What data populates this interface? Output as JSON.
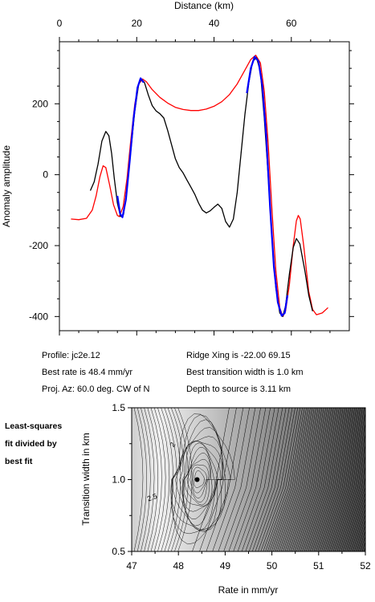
{
  "chart_data": [
    {
      "type": "line",
      "xlabel": "Distance (km)",
      "ylabel": "Anomaly amplitude",
      "xlim": [
        0,
        75
      ],
      "ylim": [
        -440,
        375
      ],
      "xticks": [
        0,
        20,
        40,
        60
      ],
      "yticks": [
        -400,
        -200,
        0,
        200
      ],
      "x_axis_position": "top",
      "grid": false,
      "colors": {
        "observed": "#000000",
        "model": "#ff0000",
        "fit_window": "#0000ff"
      },
      "series": [
        {
          "key": "observed",
          "points": [
            [
              8,
              -45
            ],
            [
              9,
              -20
            ],
            [
              10,
              30
            ],
            [
              11,
              95
            ],
            [
              12,
              122
            ],
            [
              12.8,
              110
            ],
            [
              13.5,
              60
            ],
            [
              14.2,
              -10
            ],
            [
              15,
              -80
            ],
            [
              15.8,
              -118
            ],
            [
              16.6,
              -112
            ],
            [
              17.5,
              -40
            ],
            [
              18.5,
              70
            ],
            [
              19.5,
              180
            ],
            [
              20.5,
              255
            ],
            [
              21.2,
              270
            ],
            [
              22,
              260
            ],
            [
              23,
              225
            ],
            [
              24,
              195
            ],
            [
              25,
              180
            ],
            [
              26,
              172
            ],
            [
              27,
              160
            ],
            [
              28,
              125
            ],
            [
              29,
              85
            ],
            [
              30,
              45
            ],
            [
              31,
              20
            ],
            [
              32,
              5
            ],
            [
              33,
              -15
            ],
            [
              34,
              -35
            ],
            [
              35,
              -55
            ],
            [
              36,
              -80
            ],
            [
              37,
              -100
            ],
            [
              38,
              -108
            ],
            [
              39,
              -102
            ],
            [
              40,
              -92
            ],
            [
              41,
              -83
            ],
            [
              42,
              -95
            ],
            [
              43,
              -132
            ],
            [
              44,
              -148
            ],
            [
              45,
              -125
            ],
            [
              46,
              -50
            ],
            [
              47,
              60
            ],
            [
              48,
              170
            ],
            [
              49,
              260
            ],
            [
              50,
              320
            ],
            [
              51,
              330
            ],
            [
              52,
              290
            ],
            [
              53,
              160
            ],
            [
              54,
              0
            ],
            [
              55,
              -180
            ],
            [
              56,
              -320
            ],
            [
              57,
              -390
            ],
            [
              57.8,
              -400
            ],
            [
              58.5,
              -370
            ],
            [
              59.5,
              -280
            ],
            [
              60.5,
              -205
            ],
            [
              61.3,
              -180
            ],
            [
              62.2,
              -195
            ],
            [
              63.5,
              -270
            ],
            [
              64.5,
              -340
            ],
            [
              65.5,
              -385
            ]
          ]
        },
        {
          "key": "model",
          "points": [
            [
              3,
              -125
            ],
            [
              5,
              -127
            ],
            [
              7,
              -123
            ],
            [
              8.5,
              -100
            ],
            [
              9.5,
              -60
            ],
            [
              10.5,
              -5
            ],
            [
              11.3,
              25
            ],
            [
              12,
              20
            ],
            [
              13,
              -30
            ],
            [
              14,
              -85
            ],
            [
              15,
              -115
            ],
            [
              15.5,
              -118
            ],
            [
              16.5,
              -90
            ],
            [
              17.5,
              -10
            ],
            [
              18.5,
              100
            ],
            [
              19.5,
              200
            ],
            [
              20.5,
              255
            ],
            [
              21.5,
              270
            ],
            [
              22.5,
              262
            ],
            [
              24,
              240
            ],
            [
              26,
              218
            ],
            [
              28,
              202
            ],
            [
              30,
              190
            ],
            [
              32,
              184
            ],
            [
              34,
              181
            ],
            [
              36,
              181
            ],
            [
              38,
              185
            ],
            [
              40,
              193
            ],
            [
              42,
              206
            ],
            [
              44,
              226
            ],
            [
              46,
              256
            ],
            [
              48,
              295
            ],
            [
              49.5,
              325
            ],
            [
              50.8,
              337
            ],
            [
              52,
              315
            ],
            [
              53,
              235
            ],
            [
              54,
              90
            ],
            [
              55,
              -100
            ],
            [
              56,
              -270
            ],
            [
              57,
              -375
            ],
            [
              57.8,
              -400
            ],
            [
              58.5,
              -385
            ],
            [
              59.5,
              -310
            ],
            [
              60.5,
              -200
            ],
            [
              61.3,
              -130
            ],
            [
              61.8,
              -115
            ],
            [
              62.3,
              -125
            ],
            [
              63.2,
              -200
            ],
            [
              64.5,
              -330
            ],
            [
              65.5,
              -380
            ],
            [
              66.5,
              -395
            ],
            [
              68,
              -390
            ],
            [
              69.5,
              -375
            ]
          ]
        },
        {
          "key": "fit_window",
          "points": [
            [
              15,
              -60
            ],
            [
              15.7,
              -110
            ],
            [
              16.3,
              -120
            ],
            [
              17.2,
              -70
            ],
            [
              18.2,
              40
            ],
            [
              19.2,
              160
            ],
            [
              20.2,
              245
            ],
            [
              21,
              272
            ],
            [
              21.8,
              260
            ],
            [
              48.5,
              230
            ],
            [
              49.5,
              300
            ],
            [
              50.5,
              333
            ],
            [
              51.5,
              320
            ],
            [
              52.5,
              250
            ],
            [
              53.5,
              110
            ],
            [
              54.5,
              -90
            ],
            [
              55.5,
              -260
            ],
            [
              56.5,
              -360
            ],
            [
              57.5,
              -398
            ],
            [
              58.3,
              -390
            ],
            [
              59,
              -340
            ]
          ]
        }
      ]
    },
    {
      "type": "heatmap",
      "xlabel": "Rate in mm/yr",
      "ylabel": "Transition width in km",
      "xlim": [
        47,
        52
      ],
      "ylim": [
        0.5,
        1.5
      ],
      "xticks": [
        "47",
        "48",
        "49",
        "50",
        "51",
        "52"
      ],
      "yticks": [
        "0.5",
        "1.0",
        "1.5"
      ],
      "contour_labels": [
        "2",
        "2.5"
      ],
      "best_fit": {
        "rate": 48.4,
        "width": 1.0
      },
      "shading": "grayscale, darker = larger misfit"
    }
  ],
  "info": {
    "profile": "Profile: jc2e.12",
    "ridge_xing": "Ridge Xing is -22.00 69.15",
    "best_rate": "Best rate is 48.4 mm/yr",
    "best_width": "Best transition width is 1.0 km",
    "proj_az": "Proj. Az: 60.0 deg. CW of N",
    "depth": "Depth to source is   3.11 km"
  },
  "side_note": [
    "Least-squares",
    "fit divided by",
    "best fit"
  ]
}
